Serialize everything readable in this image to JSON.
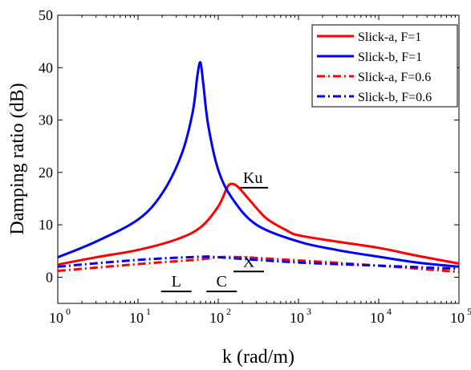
{
  "chart_data": {
    "type": "line",
    "x_scale": "log",
    "xlim": [
      1,
      100000
    ],
    "ylim": [
      -5,
      50
    ],
    "xlabel": "k (rad/m)",
    "ylabel": "Damping ratio (dB)",
    "x_ticks": [
      {
        "value": 1,
        "base": "10",
        "exp": "0"
      },
      {
        "value": 10,
        "base": "10",
        "exp": "1"
      },
      {
        "value": 100,
        "base": "10",
        "exp": "2"
      },
      {
        "value": 1000,
        "base": "10",
        "exp": "3"
      },
      {
        "value": 10000,
        "base": "10",
        "exp": "4"
      },
      {
        "value": 100000,
        "base": "10",
        "exp": "5"
      }
    ],
    "y_ticks": [
      0,
      10,
      20,
      30,
      40,
      50
    ],
    "grid": false,
    "legend_position": "top-right",
    "series": [
      {
        "name": "Slick-a, F=1",
        "color": "#ff0000",
        "dash": "solid",
        "points": [
          [
            1,
            2.4
          ],
          [
            3,
            3.8
          ],
          [
            10,
            5.2
          ],
          [
            30,
            7.2
          ],
          [
            60,
            9.5
          ],
          [
            100,
            13.5
          ],
          [
            130,
            17.2
          ],
          [
            150,
            17.8
          ],
          [
            180,
            17.1
          ],
          [
            250,
            14.6
          ],
          [
            400,
            11.2
          ],
          [
            700,
            9.0
          ],
          [
            1000,
            8.0
          ],
          [
            3000,
            6.8
          ],
          [
            10000,
            5.6
          ],
          [
            30000,
            4.1
          ],
          [
            100000,
            2.6
          ]
        ]
      },
      {
        "name": "Slick-b, F=1",
        "color": "#0000ff",
        "dash": "solid",
        "points": [
          [
            1,
            3.8
          ],
          [
            3,
            6.8
          ],
          [
            10,
            11.0
          ],
          [
            20,
            16.0
          ],
          [
            35,
            23.5
          ],
          [
            48,
            31.5
          ],
          [
            55,
            38.5
          ],
          [
            60,
            41.0
          ],
          [
            65,
            37.0
          ],
          [
            75,
            29.0
          ],
          [
            100,
            20.5
          ],
          [
            150,
            15.0
          ],
          [
            300,
            10.0
          ],
          [
            1000,
            6.8
          ],
          [
            3000,
            5.2
          ],
          [
            10000,
            3.9
          ],
          [
            30000,
            2.8
          ],
          [
            100000,
            2.0
          ]
        ]
      },
      {
        "name": "Slick-a, F=0.6",
        "color": "#ff0000",
        "dash": "dashdot",
        "points": [
          [
            1,
            1.2
          ],
          [
            10,
            2.5
          ],
          [
            50,
            3.3
          ],
          [
            100,
            3.8
          ],
          [
            200,
            3.8
          ],
          [
            1000,
            3.2
          ],
          [
            10000,
            2.2
          ],
          [
            100000,
            1.0
          ]
        ]
      },
      {
        "name": "Slick-b, F=0.6",
        "color": "#0000ff",
        "dash": "dashdot",
        "points": [
          [
            1,
            2.0
          ],
          [
            10,
            3.3
          ],
          [
            60,
            3.9
          ],
          [
            100,
            3.8
          ],
          [
            1000,
            2.8
          ],
          [
            10000,
            2.2
          ],
          [
            100000,
            1.6
          ]
        ]
      }
    ],
    "band_labels": [
      {
        "text": "L",
        "x": 30,
        "y": -1.8
      },
      {
        "text": "C",
        "x": 110,
        "y": -1.8
      },
      {
        "text": "X",
        "x": 240,
        "y": 2.0
      },
      {
        "text": "Ku",
        "x": 270,
        "y": 18.0
      }
    ]
  }
}
